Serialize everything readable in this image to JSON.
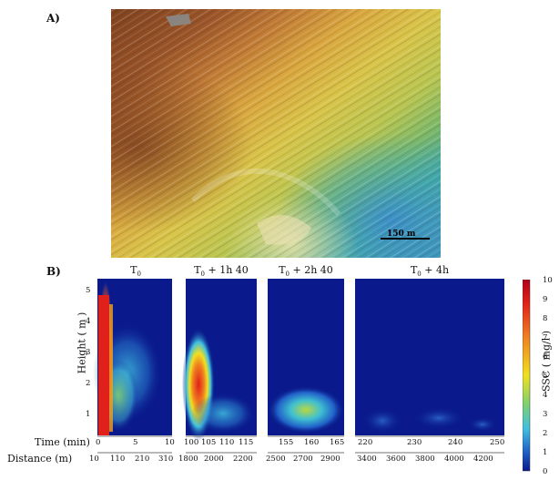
{
  "panel_a": {
    "label": "A)",
    "scale_bar_label": "150 m"
  },
  "panel_b": {
    "label": "B)",
    "y_axis_label": "Height ( m )",
    "y_ticks": [
      "5",
      "4",
      "3",
      "2",
      "1"
    ],
    "row_labels": {
      "time": "Time (min)",
      "distance": "Distance (m)"
    },
    "colorbar": {
      "label": "SSC ( mg/l )",
      "ticks": [
        "10",
        "9",
        "8",
        "7",
        "6",
        "5",
        "4",
        "3",
        "2",
        "1",
        "0"
      ]
    },
    "subplots": [
      {
        "title": "T",
        "subscript": "0",
        "suffix": "",
        "time_ticks": [
          "0",
          "5",
          "10"
        ],
        "distance_ticks": [
          "10",
          "110",
          "210",
          "310"
        ]
      },
      {
        "title": "T",
        "subscript": "0",
        "suffix": " + 1h 40",
        "time_ticks": [
          "100",
          "105",
          "110",
          "115"
        ],
        "distance_ticks": [
          "1800",
          "2000",
          "2200"
        ]
      },
      {
        "title": "T",
        "subscript": "0",
        "suffix": " + 2h 40",
        "time_ticks": [
          "155",
          "160",
          "165"
        ],
        "distance_ticks": [
          "2500",
          "2700",
          "2900"
        ]
      },
      {
        "title": "T",
        "subscript": "0",
        "suffix": " + 4h",
        "time_ticks": [
          "220",
          "230",
          "240",
          "250"
        ],
        "distance_ticks": [
          "3400",
          "3600",
          "3800",
          "4000",
          "4200"
        ]
      }
    ]
  },
  "colors": {
    "map_dark_brown": "#8a4a24",
    "map_brown": "#b56a32",
    "map_orange": "#d99a3a",
    "map_yellow": "#d6c34a",
    "map_green": "#8cb85a",
    "map_teal": "#3aa3a8",
    "map_blue": "#3a8fc8",
    "heat_background": "#0a1a8c",
    "heat_red": "#e0201a",
    "heat_yellow": "#f0e020",
    "heat_cyan": "#40c0e0"
  }
}
